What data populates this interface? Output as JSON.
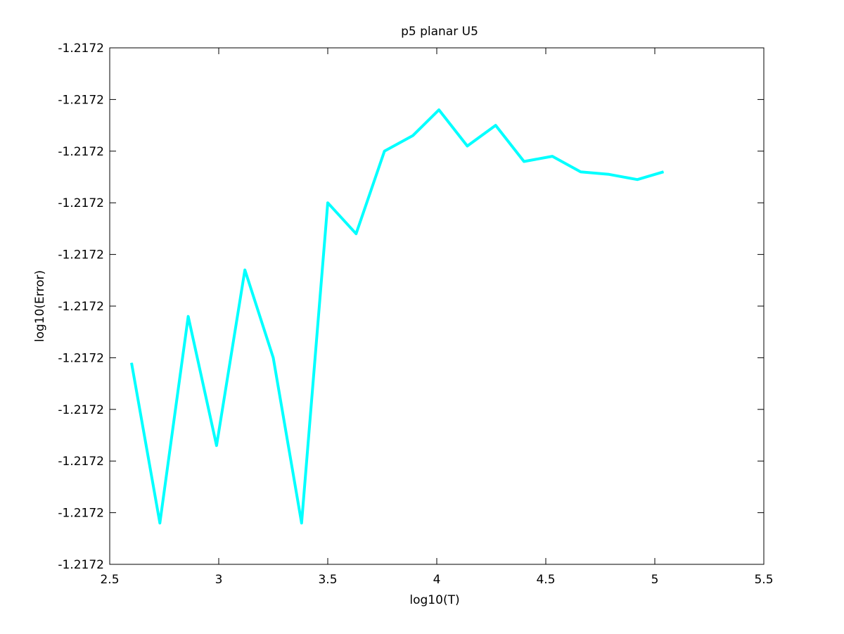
{
  "chart_data": {
    "type": "line",
    "title": "p5 planar U5",
    "xlabel": "log10(T)",
    "ylabel": "log10(Error)",
    "xlim": [
      2.5,
      5.5
    ],
    "ylim": [
      0,
      10
    ],
    "x_ticks": [
      {
        "value": 2.5,
        "label": "2.5"
      },
      {
        "value": 3.0,
        "label": "3"
      },
      {
        "value": 3.5,
        "label": "3.5"
      },
      {
        "value": 4.0,
        "label": "4"
      },
      {
        "value": 4.5,
        "label": "4.5"
      },
      {
        "value": 5.0,
        "label": "5"
      },
      {
        "value": 5.5,
        "label": "5.5"
      }
    ],
    "y_ticks": [
      {
        "value": 0,
        "label": "-1.2172"
      },
      {
        "value": 1,
        "label": "-1.2172"
      },
      {
        "value": 2,
        "label": "-1.2172"
      },
      {
        "value": 3,
        "label": "-1.2172"
      },
      {
        "value": 4,
        "label": "-1.2172"
      },
      {
        "value": 5,
        "label": "-1.2172"
      },
      {
        "value": 6,
        "label": "-1.2172"
      },
      {
        "value": 7,
        "label": "-1.2172"
      },
      {
        "value": 8,
        "label": "-1.2172"
      },
      {
        "value": 9,
        "label": "-1.2172"
      },
      {
        "value": 10,
        "label": "-1.2172"
      }
    ],
    "grid": false,
    "series": [
      {
        "name": "error",
        "color": "#00ffff",
        "x": [
          2.6,
          2.73,
          2.86,
          2.99,
          3.12,
          3.25,
          3.38,
          3.5,
          3.63,
          3.76,
          3.89,
          4.01,
          4.14,
          4.27,
          4.4,
          4.53,
          4.66,
          4.79,
          4.92,
          5.04
        ],
        "y": [
          3.9,
          0.8,
          4.8,
          2.3,
          5.7,
          4.0,
          0.8,
          7.0,
          6.4,
          8.0,
          8.3,
          8.8,
          8.1,
          8.5,
          7.8,
          7.9,
          7.6,
          7.55,
          7.45,
          7.6
        ]
      }
    ]
  }
}
